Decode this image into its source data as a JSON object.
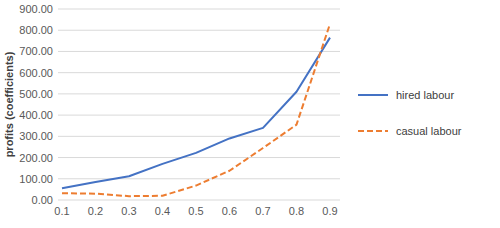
{
  "chart_data": {
    "type": "line",
    "y_label": "profits (coefficients)",
    "categories": [
      "0.1",
      "0.2",
      "0.3",
      "0.4",
      "0.5",
      "0.6",
      "0.7",
      "0.8",
      "0.9"
    ],
    "series": [
      {
        "name": "hired labour",
        "color": "#4472c4",
        "line_style": "solid",
        "values": [
          55,
          85,
          112,
          170,
          222,
          290,
          340,
          510,
          765
        ]
      },
      {
        "name": "casual labour",
        "color": "#ed7d31",
        "line_style": "dashed",
        "values": [
          32,
          30,
          18,
          20,
          68,
          138,
          245,
          355,
          830
        ]
      }
    ],
    "ylim": [
      0,
      900
    ],
    "yticks": [
      {
        "value": 0,
        "label": "0.00"
      },
      {
        "value": 100,
        "label": "100.00"
      },
      {
        "value": 200,
        "label": "200.00"
      },
      {
        "value": 300,
        "label": "300.00"
      },
      {
        "value": 400,
        "label": "400.00"
      },
      {
        "value": 500,
        "label": "500.00"
      },
      {
        "value": 600,
        "label": "600.00"
      },
      {
        "value": 700,
        "label": "700.00"
      },
      {
        "value": 800,
        "label": "800.00"
      },
      {
        "value": 900,
        "label": "900.00"
      }
    ],
    "grid": true,
    "legend": "right"
  }
}
